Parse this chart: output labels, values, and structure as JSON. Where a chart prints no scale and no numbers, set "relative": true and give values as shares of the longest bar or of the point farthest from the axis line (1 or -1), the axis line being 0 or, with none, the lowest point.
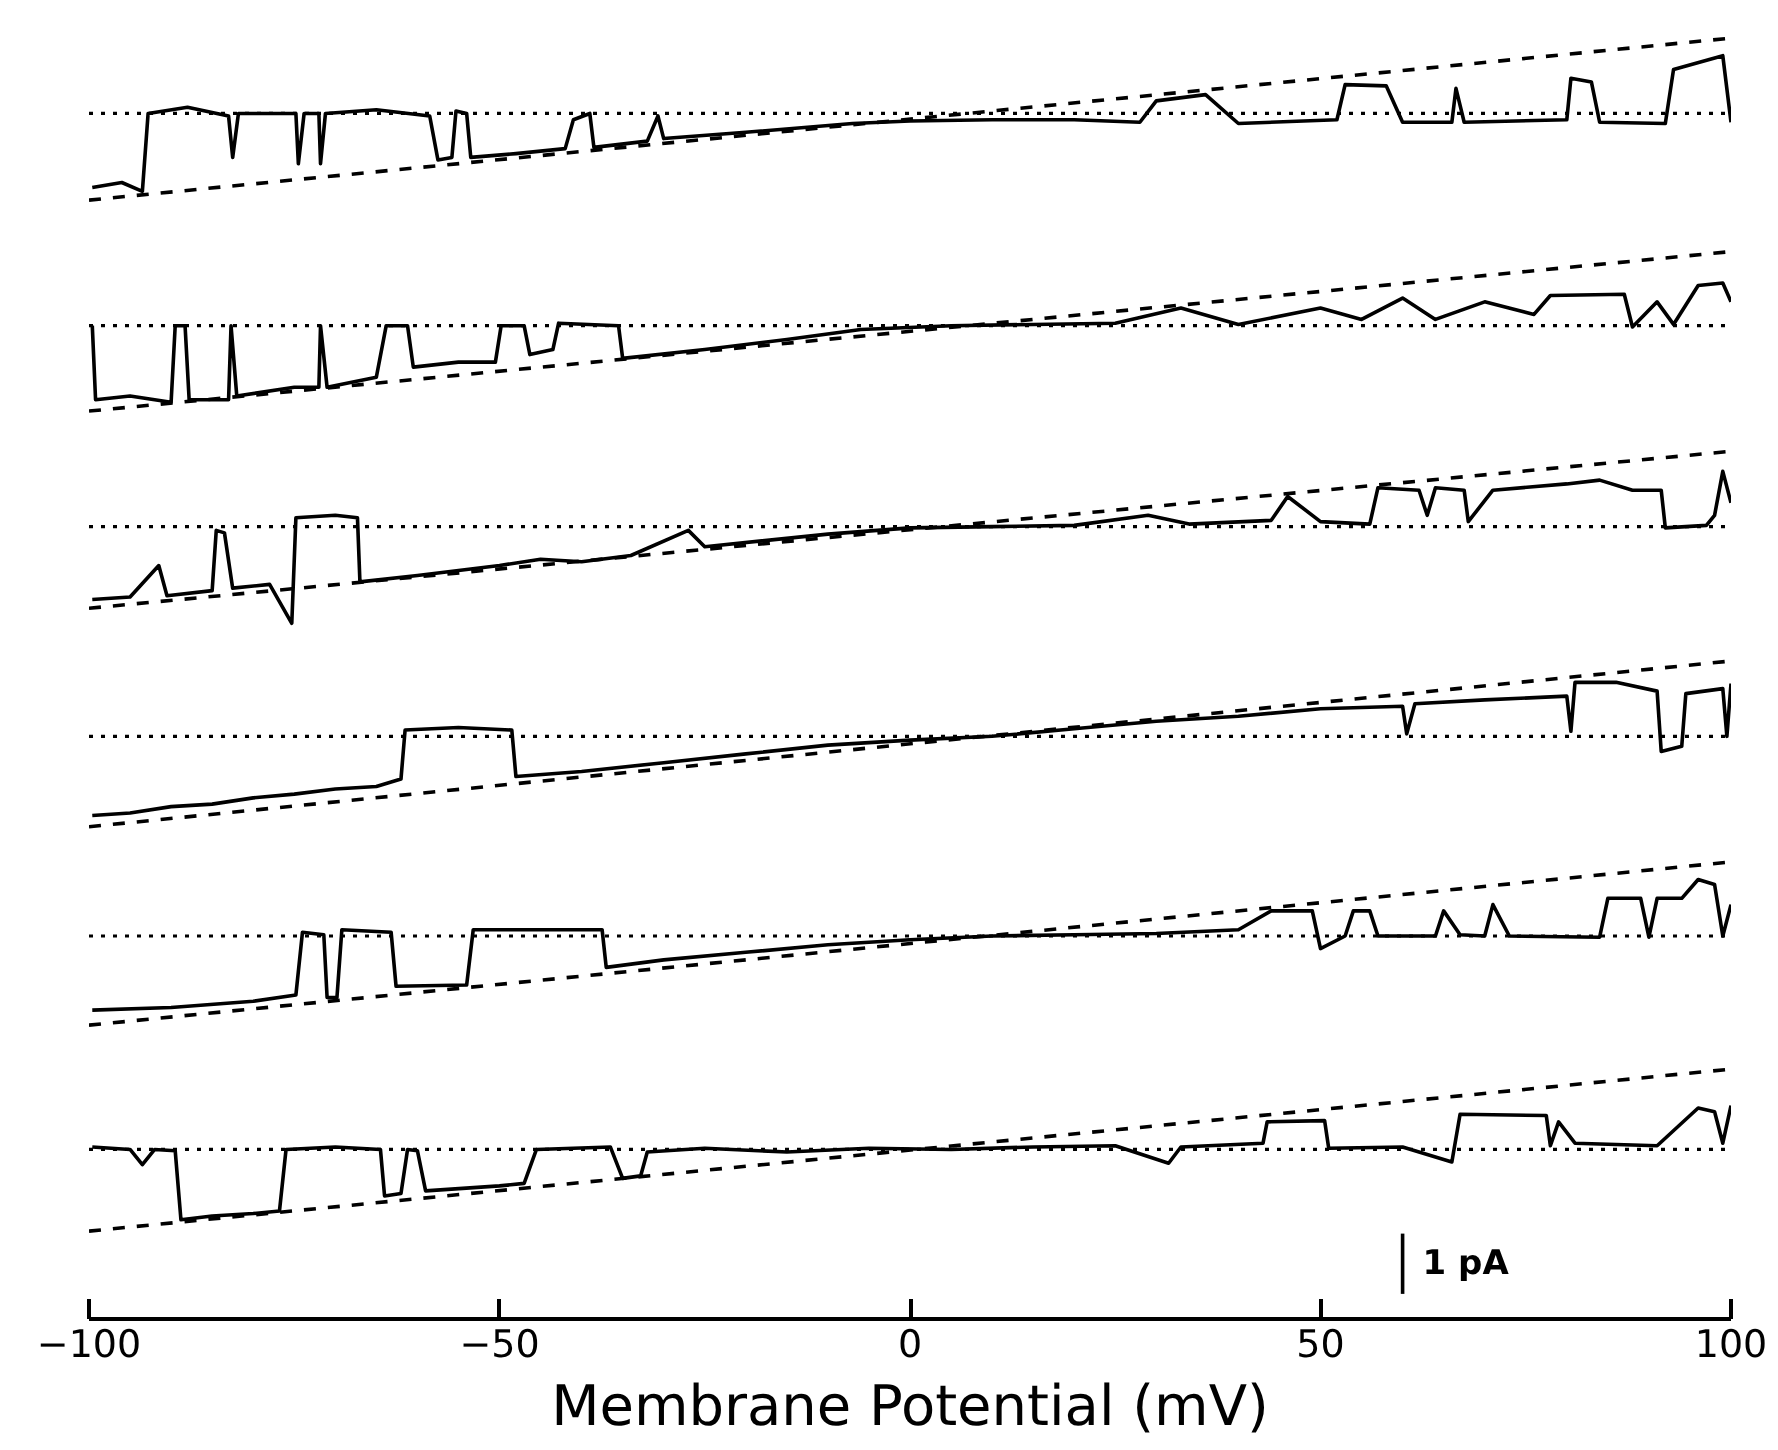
{
  "chart_data": {
    "type": "line",
    "relative": true,
    "xlabel": "Membrane Potential (mV)",
    "xlim": [
      -100,
      100
    ],
    "xticks": [
      -100,
      -50,
      0,
      50,
      100
    ],
    "line_style": "solid",
    "grid": false,
    "series": [
      {
        "color": "#000000",
        "x": [
          -99.6,
          -96,
          -93.5,
          -92.8,
          -88,
          -83,
          -82.5,
          -81.8,
          -74.8,
          -74.5,
          -73.8,
          -72,
          -71.8,
          -71.2,
          -65,
          -58.5,
          -57.5,
          -55.8,
          -55.3,
          -54,
          -53.5,
          -48,
          -42,
          -41,
          -39,
          -38.5,
          -32,
          -30.7,
          -30,
          -20,
          -7,
          0,
          10,
          20,
          28,
          30,
          36,
          40,
          52,
          53,
          58,
          60,
          66,
          66.5,
          67.5,
          80,
          80.5,
          83,
          84,
          92,
          93,
          99,
          100
        ],
        "values": [
          0.881,
          0.885,
          0.878,
          0.94,
          0.945,
          0.938,
          0.905,
          0.94,
          0.94,
          0.9,
          0.94,
          0.94,
          0.9,
          0.94,
          0.943,
          0.938,
          0.903,
          0.905,
          0.942,
          0.94,
          0.905,
          0.908,
          0.912,
          0.935,
          0.94,
          0.913,
          0.918,
          0.938,
          0.92,
          0.925,
          0.932,
          0.934,
          0.935,
          0.935,
          0.933,
          0.95,
          0.955,
          0.932,
          0.935,
          0.963,
          0.962,
          0.933,
          0.933,
          0.96,
          0.933,
          0.935,
          0.968,
          0.965,
          0.933,
          0.932,
          0.975,
          0.986,
          0.933
        ]
      },
      {
        "color": "#000000",
        "x": [
          -99.6,
          -99.2,
          -95,
          -90,
          -89.5,
          -88.3,
          -87.8,
          -83,
          -82.7,
          -82,
          -75,
          -72,
          -71.8,
          -71,
          -65,
          -63.8,
          -61.2,
          -60.5,
          -55,
          -50.5,
          -49.8,
          -47,
          -46.3,
          -43.5,
          -42.8,
          -35.5,
          -35,
          -25,
          -15,
          -6,
          5,
          15,
          25,
          33,
          40,
          50,
          55,
          60,
          64,
          70,
          76,
          78,
          87,
          88,
          91,
          93,
          96,
          99,
          100
        ],
        "values": [
          0.771,
          0.712,
          0.715,
          0.71,
          0.771,
          0.771,
          0.712,
          0.712,
          0.771,
          0.715,
          0.722,
          0.722,
          0.771,
          0.722,
          0.73,
          0.771,
          0.771,
          0.738,
          0.742,
          0.742,
          0.771,
          0.771,
          0.748,
          0.752,
          0.773,
          0.771,
          0.745,
          0.752,
          0.76,
          0.768,
          0.771,
          0.772,
          0.773,
          0.785,
          0.772,
          0.785,
          0.776,
          0.793,
          0.776,
          0.79,
          0.78,
          0.795,
          0.796,
          0.77,
          0.79,
          0.772,
          0.803,
          0.805,
          0.79
        ]
      },
      {
        "color": "#000000",
        "x": [
          -99.6,
          -95,
          -91.5,
          -90.5,
          -85,
          -84.5,
          -83.5,
          -82.5,
          -78,
          -75.3,
          -74.8,
          -70,
          -67.3,
          -67,
          -60,
          -50,
          -45,
          -40,
          -34,
          -27,
          -25,
          -10,
          0,
          10,
          20,
          29,
          34,
          44,
          46,
          50,
          56,
          57,
          62,
          63,
          64,
          67.5,
          68,
          71,
          80,
          84,
          88,
          91.5,
          92,
          97,
          98,
          99,
          100
        ],
        "values": [
          0.553,
          0.555,
          0.58,
          0.556,
          0.56,
          0.608,
          0.606,
          0.562,
          0.565,
          0.534,
          0.618,
          0.62,
          0.618,
          0.567,
          0.572,
          0.58,
          0.585,
          0.583,
          0.588,
          0.608,
          0.595,
          0.605,
          0.61,
          0.611,
          0.612,
          0.62,
          0.613,
          0.616,
          0.635,
          0.615,
          0.613,
          0.642,
          0.64,
          0.62,
          0.642,
          0.64,
          0.615,
          0.64,
          0.645,
          0.648,
          0.64,
          0.64,
          0.61,
          0.612,
          0.62,
          0.655,
          0.63
        ]
      },
      {
        "color": "#000000",
        "x": [
          -99.6,
          -95,
          -90,
          -85,
          -80,
          -75,
          -70,
          -65,
          -62,
          -61.5,
          -55,
          -48.5,
          -48,
          -40,
          -30,
          -20,
          -10,
          0,
          10,
          20,
          30,
          40,
          50,
          60,
          60.5,
          61.5,
          70,
          80,
          80.5,
          81,
          86,
          91,
          91.5,
          94,
          94.5,
          99,
          99.5,
          100
        ],
        "values": [
          0.381,
          0.383,
          0.388,
          0.39,
          0.395,
          0.398,
          0.402,
          0.404,
          0.41,
          0.449,
          0.451,
          0.449,
          0.412,
          0.416,
          0.423,
          0.43,
          0.437,
          0.441,
          0.444,
          0.45,
          0.456,
          0.46,
          0.466,
          0.468,
          0.446,
          0.47,
          0.473,
          0.476,
          0.448,
          0.487,
          0.487,
          0.48,
          0.432,
          0.436,
          0.478,
          0.482,
          0.444,
          0.486
        ]
      },
      {
        "color": "#000000",
        "x": [
          -99.6,
          -90,
          -80,
          -74.8,
          -74,
          -71.4,
          -71,
          -69.8,
          -69.2,
          -63.2,
          -62.6,
          -54,
          -53.2,
          -37.5,
          -37,
          -30,
          -20,
          -10,
          0,
          10,
          20,
          30,
          40,
          44,
          49,
          50,
          53,
          54,
          56,
          57,
          64,
          65,
          67,
          70,
          71,
          73,
          84,
          85,
          89,
          90,
          91,
          94,
          96,
          98,
          99,
          100
        ],
        "values": [
          0.226,
          0.228,
          0.233,
          0.238,
          0.288,
          0.286,
          0.236,
          0.236,
          0.29,
          0.288,
          0.245,
          0.246,
          0.29,
          0.29,
          0.26,
          0.266,
          0.272,
          0.278,
          0.282,
          0.285,
          0.286,
          0.287,
          0.29,
          0.305,
          0.305,
          0.275,
          0.285,
          0.305,
          0.305,
          0.285,
          0.285,
          0.305,
          0.286,
          0.285,
          0.31,
          0.285,
          0.284,
          0.315,
          0.315,
          0.284,
          0.315,
          0.315,
          0.33,
          0.326,
          0.285,
          0.31
        ]
      },
      {
        "color": "#000000",
        "x": [
          -99.6,
          -95,
          -93.5,
          -92,
          -89.5,
          -88.8,
          -85,
          -80,
          -76.8,
          -76,
          -70,
          -64.5,
          -64,
          -62,
          -61.2,
          -60,
          -59,
          -50,
          -47,
          -45.5,
          -36.5,
          -35,
          -32.8,
          -32,
          -25,
          -15,
          -5,
          5,
          15,
          25,
          31.5,
          33,
          43,
          43.5,
          50.5,
          51,
          60,
          66,
          67,
          77.5,
          78,
          79,
          81,
          91,
          96,
          98,
          99,
          100
        ],
        "values": [
          0.117,
          0.115,
          0.103,
          0.115,
          0.114,
          0.059,
          0.062,
          0.064,
          0.066,
          0.115,
          0.117,
          0.115,
          0.078,
          0.08,
          0.115,
          0.114,
          0.082,
          0.086,
          0.088,
          0.115,
          0.117,
          0.092,
          0.094,
          0.113,
          0.116,
          0.113,
          0.116,
          0.115,
          0.117,
          0.118,
          0.104,
          0.117,
          0.12,
          0.137,
          0.138,
          0.116,
          0.117,
          0.105,
          0.143,
          0.142,
          0.118,
          0.137,
          0.12,
          0.118,
          0.148,
          0.145,
          0.12,
          0.15
        ]
      },
      {
        "color": "#000000",
        "line_style": "dashed",
        "x": [
          -100,
          100
        ],
        "values": [
          0.871,
          1.0
        ]
      },
      {
        "color": "#000000",
        "line_style": "dashed",
        "x": [
          -100,
          100
        ],
        "values": [
          0.703,
          0.83
        ]
      },
      {
        "color": "#000000",
        "line_style": "dashed",
        "x": [
          -100,
          100
        ],
        "values": [
          0.546,
          0.671
        ]
      },
      {
        "color": "#000000",
        "line_style": "dashed",
        "x": [
          -100,
          100
        ],
        "values": [
          0.372,
          0.504
        ]
      },
      {
        "color": "#000000",
        "line_style": "dashed",
        "x": [
          -100,
          100
        ],
        "values": [
          0.214,
          0.344
        ]
      },
      {
        "color": "#000000",
        "line_style": "dashed",
        "x": [
          -100,
          100
        ],
        "values": [
          0.05,
          0.179
        ]
      },
      {
        "color": "#000000",
        "x": [
          60,
          60
        ],
        "values": [
          0.0,
          0.048
        ]
      }
    ],
    "ref_lines": [
      {
        "axis": "y",
        "value": 0.94,
        "color": "#000000",
        "line_style": "dotted"
      },
      {
        "axis": "y",
        "value": 0.771,
        "color": "#000000",
        "line_style": "dotted"
      },
      {
        "axis": "y",
        "value": 0.611,
        "color": "#000000",
        "line_style": "dotted"
      },
      {
        "axis": "y",
        "value": 0.444,
        "color": "#000000",
        "line_style": "dotted"
      },
      {
        "axis": "y",
        "value": 0.285,
        "color": "#000000",
        "line_style": "dotted"
      },
      {
        "axis": "y",
        "value": 0.115,
        "color": "#000000",
        "line_style": "dotted"
      }
    ],
    "annotations": [
      {
        "text": "1 pA",
        "x": 60,
        "y": 0.024
      }
    ]
  }
}
